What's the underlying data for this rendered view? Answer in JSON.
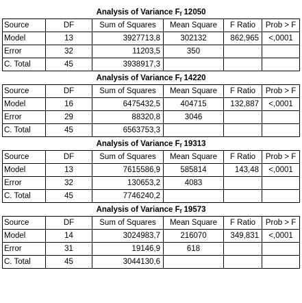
{
  "header": [
    "Source",
    "DF",
    "Sum of Squares",
    "Mean Square",
    "F Ratio",
    "Prob > F"
  ],
  "title_prefix": "Analysis of Variance F",
  "title_sub": "f",
  "tables": [
    {
      "id": "12050",
      "rows": [
        [
          "Model",
          "13",
          "3927713,8",
          "302132",
          "862,965",
          "<,0001"
        ],
        [
          "Error",
          "32",
          "11203,5",
          "350",
          "",
          ""
        ],
        [
          "C. Total",
          "45",
          "3938917,3",
          "",
          "",
          ""
        ]
      ]
    },
    {
      "id": "14220",
      "rows": [
        [
          "Model",
          "16",
          "6475432,5",
          "404715",
          "132,887",
          "<,0001"
        ],
        [
          "Error",
          "29",
          "88320,8",
          "3046",
          "",
          ""
        ],
        [
          "C. Total",
          "45",
          "6563753,3",
          "",
          "",
          ""
        ]
      ]
    },
    {
      "id": "19313",
      "rows": [
        [
          "Model",
          "13",
          "7615586,9",
          "585814",
          "143,48",
          "<,0001"
        ],
        [
          "Error",
          "32",
          "130653,2",
          "4083",
          "",
          ""
        ],
        [
          "C. Total",
          "45",
          "7746240,2",
          "",
          "",
          ""
        ]
      ]
    },
    {
      "id": "19573",
      "rows": [
        [
          "Model",
          "14",
          "3024983,7",
          "216070",
          "349,831",
          "<,0001"
        ],
        [
          "Error",
          "31",
          "19146,9",
          "618",
          "",
          ""
        ],
        [
          "C. Total",
          "45",
          "3044130,6",
          "",
          "",
          ""
        ]
      ]
    }
  ]
}
